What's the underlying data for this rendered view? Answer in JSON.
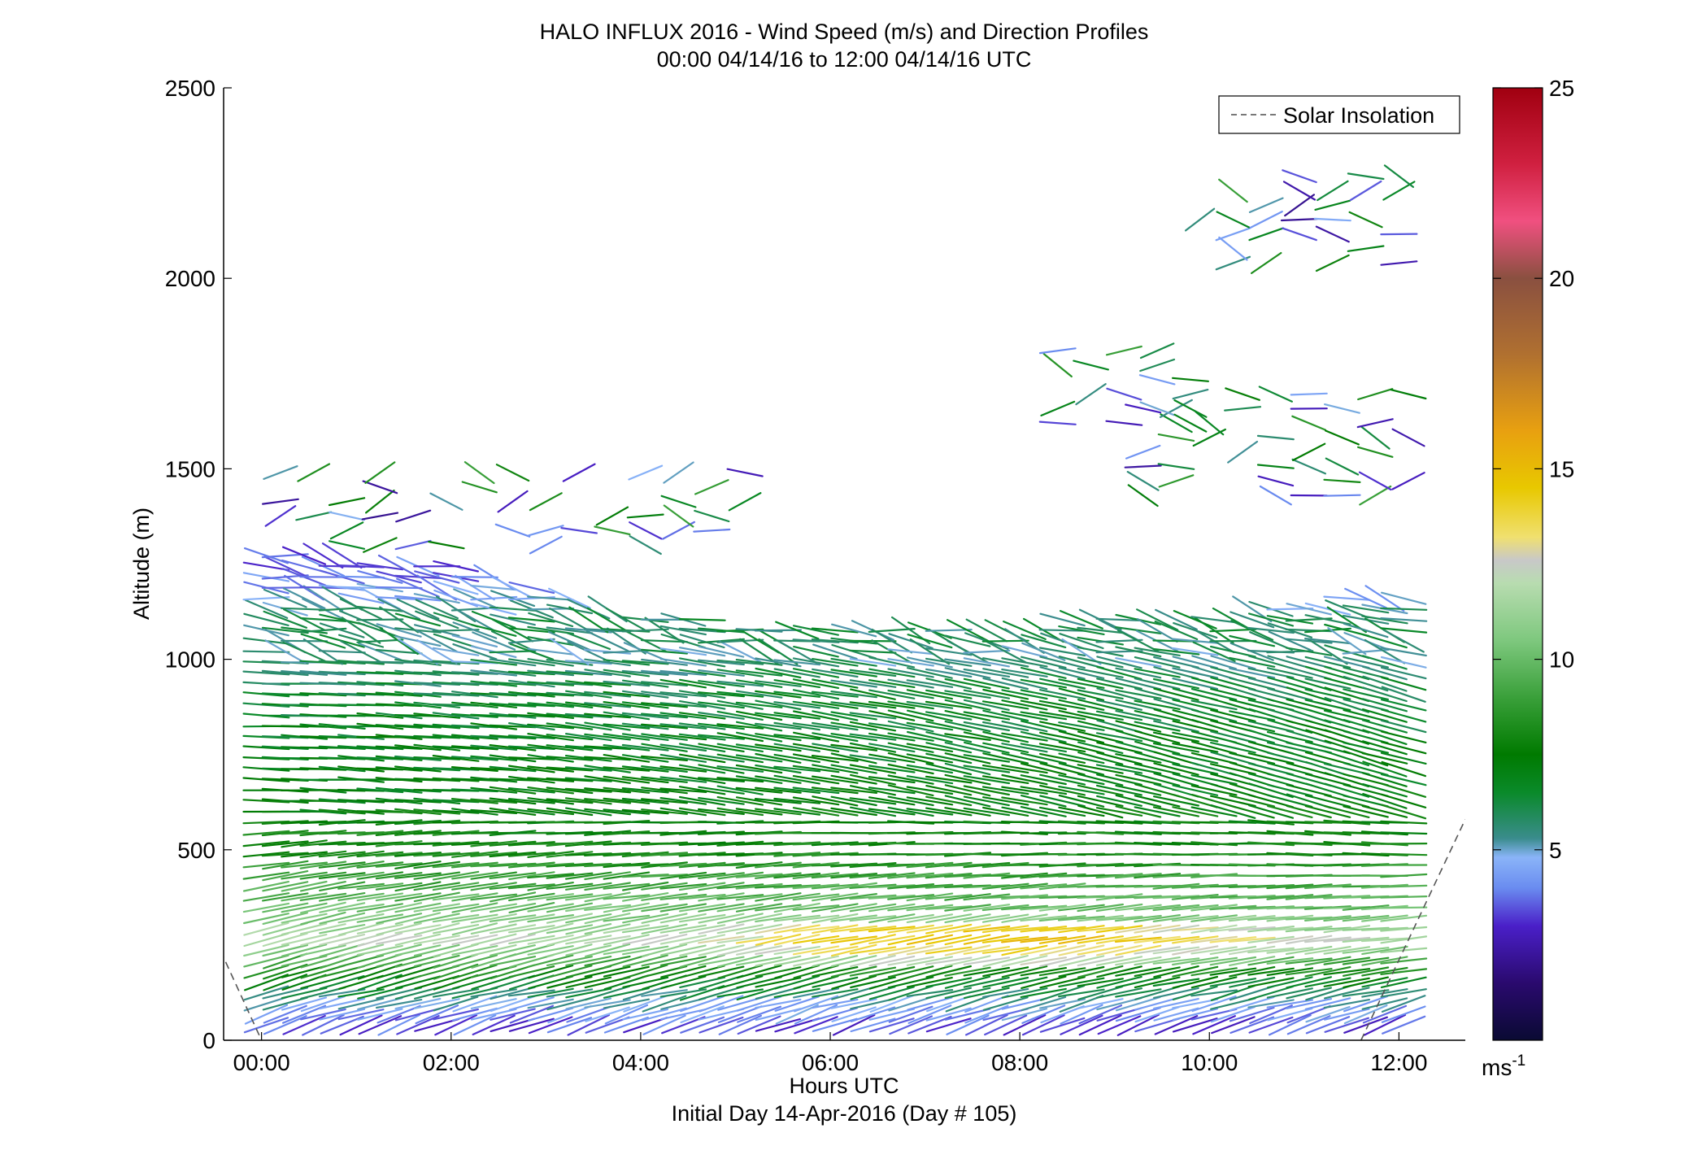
{
  "chart_data": {
    "type": "scatter",
    "title_lines": [
      "HALO INFLUX 2016 - Wind Speed (m/s) and Direction Profiles",
      "00:00 04/14/16 to 12:00 04/14/16  UTC"
    ],
    "xlabel": "Hours UTC",
    "xlabel_sub": "Initial Day 14-Apr-2016 (Day # 105)",
    "ylabel": "Altitude (m)",
    "xlim": [
      -0.4,
      12.7
    ],
    "ylim": [
      0,
      2500
    ],
    "xticks": [
      {
        "value": 0,
        "label": "00:00"
      },
      {
        "value": 2,
        "label": "02:00"
      },
      {
        "value": 4,
        "label": "04:00"
      },
      {
        "value": 6,
        "label": "06:00"
      },
      {
        "value": 8,
        "label": "08:00"
      },
      {
        "value": 10,
        "label": "10:00"
      },
      {
        "value": 12,
        "label": "12:00"
      }
    ],
    "yticks": [
      {
        "value": 0,
        "label": "0"
      },
      {
        "value": 500,
        "label": "500"
      },
      {
        "value": 1000,
        "label": "1000"
      },
      {
        "value": 1500,
        "label": "1500"
      },
      {
        "value": 2000,
        "label": "2000"
      },
      {
        "value": 2500,
        "label": "2500"
      }
    ],
    "legend": {
      "label": "Solar Insolation",
      "placement": "top-right"
    },
    "solar_insolation": {
      "left": {
        "x": [
          -0.7,
          0.0
        ],
        "y": [
          380,
          0
        ]
      },
      "right": {
        "x": [
          11.6,
          12.7
        ],
        "y": [
          0,
          580
        ]
      }
    },
    "colorbar": {
      "label": "ms",
      "label_exp": "-1",
      "range": [
        0,
        25
      ],
      "ticks": [
        {
          "value": 5,
          "label": "5"
        },
        {
          "value": 10,
          "label": "10"
        },
        {
          "value": 15,
          "label": "15"
        },
        {
          "value": 20,
          "label": "20"
        },
        {
          "value": 25,
          "label": "25"
        }
      ],
      "stops": [
        {
          "v": 0,
          "color": "#0a0a33"
        },
        {
          "v": 1.5,
          "color": "#2a0a6e"
        },
        {
          "v": 3,
          "color": "#4a1fc8"
        },
        {
          "v": 4,
          "color": "#6a8cf0"
        },
        {
          "v": 4.8,
          "color": "#8ab4f8"
        },
        {
          "v": 5.3,
          "color": "#3a8c8c"
        },
        {
          "v": 6.5,
          "color": "#0a8a2a"
        },
        {
          "v": 7.5,
          "color": "#007a00"
        },
        {
          "v": 9,
          "color": "#3aa03a"
        },
        {
          "v": 10.5,
          "color": "#7ec87e"
        },
        {
          "v": 12,
          "color": "#b8dcb0"
        },
        {
          "v": 12.6,
          "color": "#c8c8c8"
        },
        {
          "v": 13.2,
          "color": "#f0e070"
        },
        {
          "v": 14.5,
          "color": "#e8c800"
        },
        {
          "v": 16,
          "color": "#e8a010"
        },
        {
          "v": 18,
          "color": "#b07030"
        },
        {
          "v": 20,
          "color": "#8a5040"
        },
        {
          "v": 21.5,
          "color": "#f05080"
        },
        {
          "v": 23,
          "color": "#d02040"
        },
        {
          "v": 25,
          "color": "#a00010"
        }
      ]
    },
    "wind_field": {
      "time_step_hours": 0.2,
      "time_start": 0.05,
      "time_end": 12.05,
      "level_step_m": 28,
      "level_start": 40,
      "speed_profile": [
        {
          "alt": 40,
          "speed": 3.5
        },
        {
          "alt": 100,
          "speed": 5
        },
        {
          "alt": 180,
          "speed": 8
        },
        {
          "alt": 260,
          "speed": 12
        },
        {
          "alt": 350,
          "speed": 10
        },
        {
          "alt": 500,
          "speed": 8
        },
        {
          "alt": 700,
          "speed": 7
        },
        {
          "alt": 900,
          "speed": 6.5
        },
        {
          "alt": 1000,
          "speed": 5.5
        },
        {
          "alt": 1100,
          "speed": 6
        },
        {
          "alt": 1200,
          "speed": 4
        },
        {
          "alt": 1300,
          "speed": 3.5
        }
      ],
      "top_profile": [
        {
          "time": 0,
          "alt": 1290
        },
        {
          "time": 2,
          "alt": 1250
        },
        {
          "time": 4,
          "alt": 1120
        },
        {
          "time": 6,
          "alt": 1080
        },
        {
          "time": 8,
          "alt": 1100
        },
        {
          "time": 10,
          "alt": 1120
        },
        {
          "time": 12,
          "alt": 1180
        }
      ],
      "upper_clusters": [
        {
          "t0": 9.3,
          "t1": 12.1,
          "a0": 1430,
          "a1": 1720
        },
        {
          "t0": 8.4,
          "t1": 9.9,
          "a0": 1620,
          "a1": 1840
        },
        {
          "t0": 9.9,
          "t1": 12.1,
          "a0": 2040,
          "a1": 2290
        },
        {
          "t0": 0.2,
          "t1": 5.4,
          "a0": 1300,
          "a1": 1500
        }
      ]
    }
  }
}
